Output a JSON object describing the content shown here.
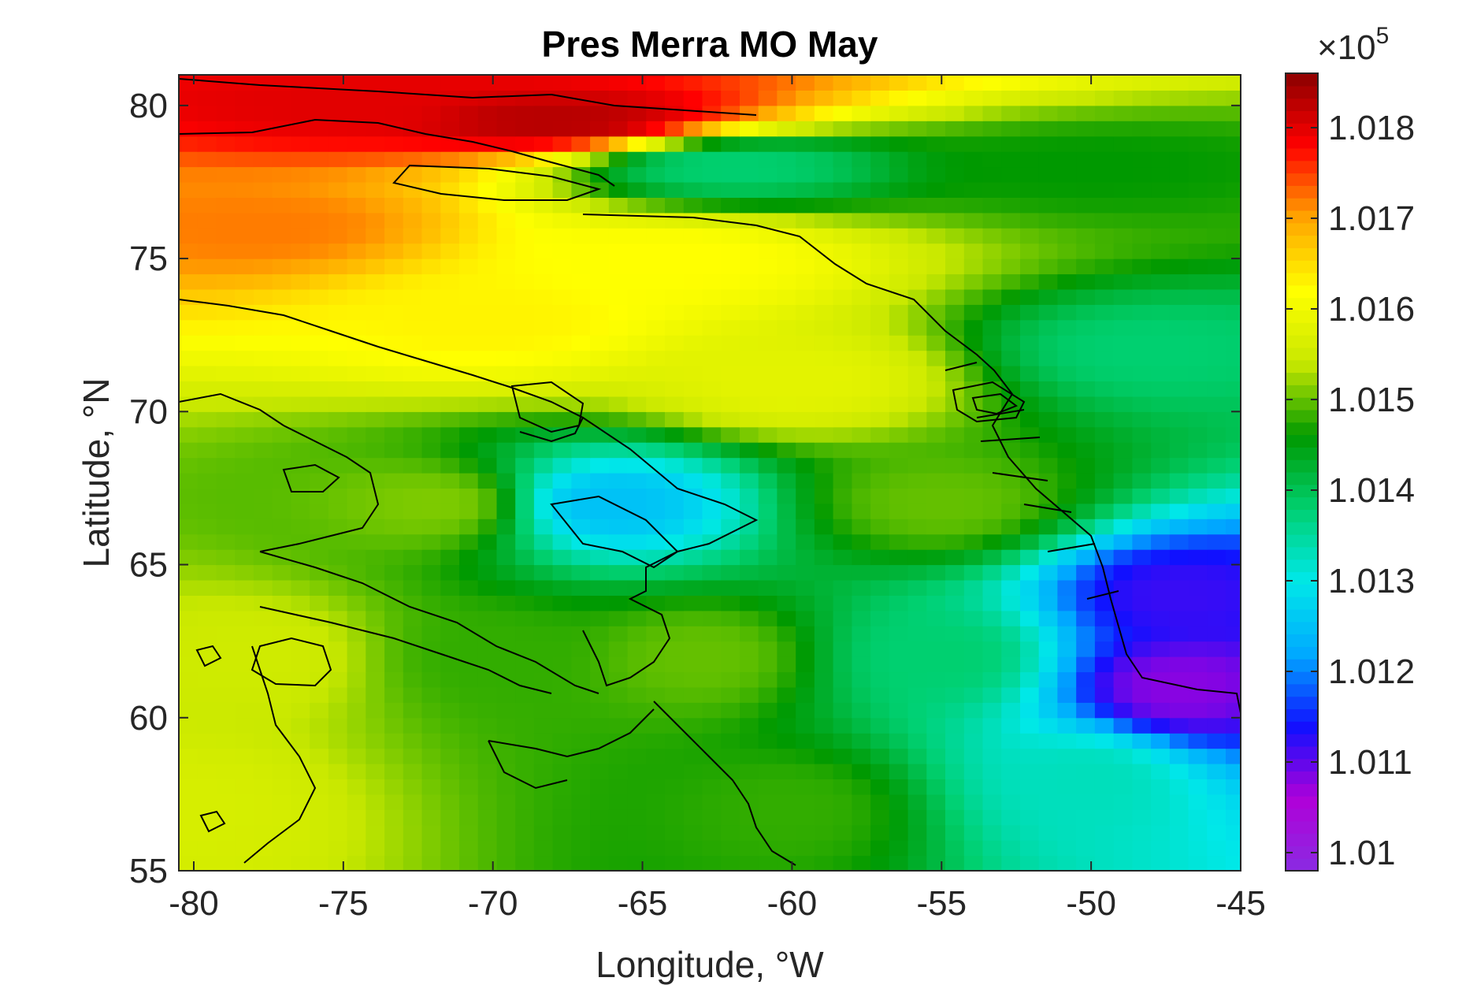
{
  "chart_data": {
    "type": "heatmap",
    "title": "Pres Merra MO May",
    "xlabel": "Longitude, °W",
    "ylabel": "Latitude, °N",
    "xlim": [
      -80.5,
      -45
    ],
    "ylim": [
      55,
      81
    ],
    "x_ticks": [
      -80,
      -75,
      -70,
      -65,
      -60,
      -55,
      -50,
      -45
    ],
    "y_ticks": [
      55,
      60,
      65,
      70,
      75,
      80
    ],
    "x_tick_labels": [
      "-80",
      "-75",
      "-70",
      "-65",
      "-60",
      "-55",
      "-50",
      "-45"
    ],
    "y_tick_labels": [
      "55",
      "60",
      "65",
      "70",
      "75",
      "80"
    ],
    "colorbar": {
      "multiplier": "×10⁵",
      "multiplier_base": "×10",
      "multiplier_exp": "5",
      "range": [
        1.0098,
        1.0186
      ],
      "ticks": [
        1.01,
        1.011,
        1.012,
        1.013,
        1.014,
        1.015,
        1.016,
        1.017,
        1.018
      ],
      "tick_labels": [
        "1.01",
        "1.011",
        "1.012",
        "1.013",
        "1.014",
        "1.015",
        "1.016",
        "1.017",
        "1.018"
      ],
      "colormap": [
        "#8a2be2",
        "#b000d8",
        "#1010ff",
        "#00aaff",
        "#00e8e8",
        "#00d070",
        "#009900",
        "#c8e800",
        "#ffff00",
        "#ffa500",
        "#ff0000",
        "#8b0000"
      ]
    },
    "field_estimates_x1e5_Pa": {
      "points": [
        {
          "lon": -75,
          "lat": 80,
          "value": 1.018
        },
        {
          "lon": -68,
          "lat": 79.5,
          "value": 1.0183
        },
        {
          "lon": -78,
          "lat": 76,
          "value": 1.0172
        },
        {
          "lon": -70,
          "lat": 73,
          "value": 1.0163
        },
        {
          "lon": -64,
          "lat": 75,
          "value": 1.0162
        },
        {
          "lon": -60,
          "lat": 71,
          "value": 1.0158
        },
        {
          "lon": -62,
          "lat": 78,
          "value": 1.0138
        },
        {
          "lon": -50,
          "lat": 78,
          "value": 1.0146
        },
        {
          "lon": -48,
          "lat": 72,
          "value": 1.0138
        },
        {
          "lon": -66,
          "lat": 67,
          "value": 1.0125
        },
        {
          "lon": -47,
          "lat": 64,
          "value": 1.0112
        },
        {
          "lon": -47,
          "lat": 61,
          "value": 1.0108
        },
        {
          "lon": -50,
          "lat": 58,
          "value": 1.0133
        },
        {
          "lon": -55,
          "lat": 62,
          "value": 1.0138
        },
        {
          "lon": -63,
          "lat": 62,
          "value": 1.015
        },
        {
          "lon": -70,
          "lat": 62,
          "value": 1.0148
        },
        {
          "lon": -78,
          "lat": 62,
          "value": 1.0155
        },
        {
          "lon": -80,
          "lat": 57,
          "value": 1.0156
        },
        {
          "lon": -72,
          "lat": 67,
          "value": 1.0151
        },
        {
          "lon": -60,
          "lat": 57,
          "value": 1.0148
        },
        {
          "lon": -55,
          "lat": 67,
          "value": 1.015
        }
      ]
    },
    "grid": false,
    "legend": "colorbar-right"
  }
}
